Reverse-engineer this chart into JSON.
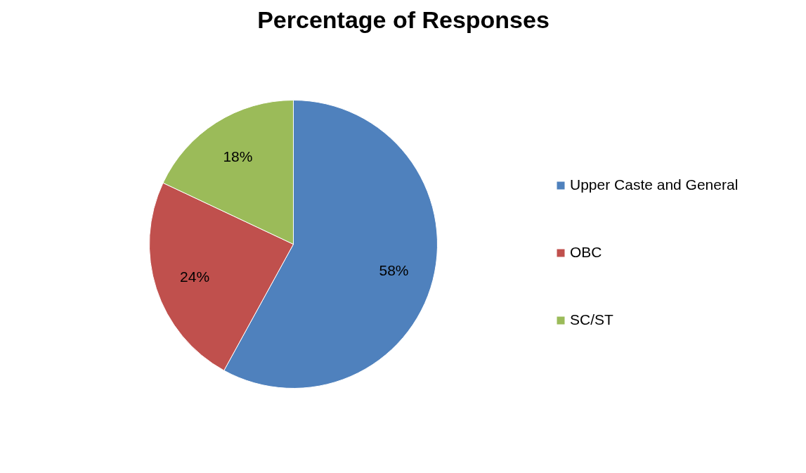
{
  "chart_data": {
    "type": "pie",
    "title": "Percentage of Responses",
    "categories": [
      "Upper Caste and General",
      "OBC",
      "SC/ST"
    ],
    "values": [
      58,
      24,
      18
    ],
    "colors": [
      "#4f81bd",
      "#c0504d",
      "#9bbb59"
    ],
    "value_labels": [
      "58%",
      "24%",
      "18%"
    ],
    "legend": "right"
  }
}
